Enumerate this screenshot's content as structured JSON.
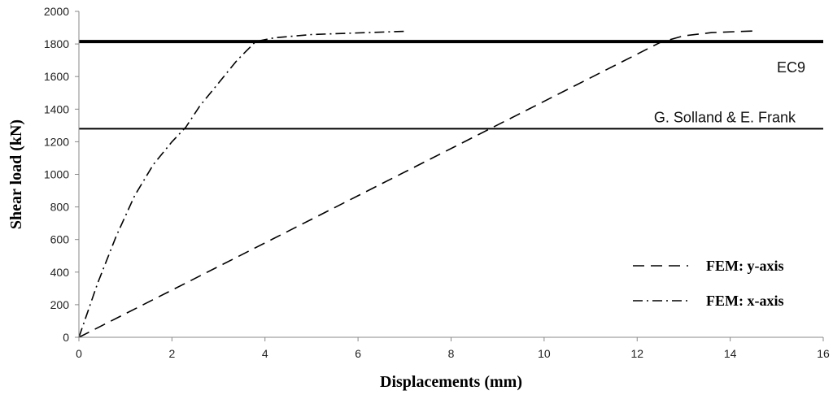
{
  "chart_data": {
    "type": "line",
    "xlabel": "Displacements (mm)",
    "ylabel": "Shear load (kN)",
    "xlim": [
      0,
      16
    ],
    "ylim": [
      0,
      2000
    ],
    "xticks": [
      0,
      2,
      4,
      6,
      8,
      10,
      12,
      14,
      16
    ],
    "yticks": [
      0,
      200,
      400,
      600,
      800,
      1000,
      1200,
      1400,
      1600,
      1800,
      2000
    ],
    "grid": false,
    "legend_position": "bottom-right",
    "series": [
      {
        "name": "FEM: y-axis",
        "style": "dashed",
        "color": "#000000",
        "x": [
          0,
          12.5,
          13.0,
          13.6,
          14.5
        ],
        "y": [
          0,
          1810,
          1850,
          1870,
          1880
        ]
      },
      {
        "name": "FEM: x-axis",
        "style": "dash-dot",
        "color": "#000000",
        "x": [
          0,
          0.4,
          0.8,
          1.2,
          1.6,
          2.0,
          2.3,
          2.6,
          3.0,
          3.4,
          3.8,
          4.2,
          5.0,
          6.0,
          7.0
        ],
        "y": [
          0,
          330,
          620,
          870,
          1060,
          1200,
          1290,
          1420,
          1560,
          1700,
          1815,
          1838,
          1858,
          1868,
          1878
        ]
      }
    ],
    "reference_lines": [
      {
        "label": "EC9",
        "y": 1815,
        "weight": "thick"
      },
      {
        "label": "G. Solland & E. Frank",
        "y": 1280,
        "weight": "thin"
      }
    ]
  }
}
